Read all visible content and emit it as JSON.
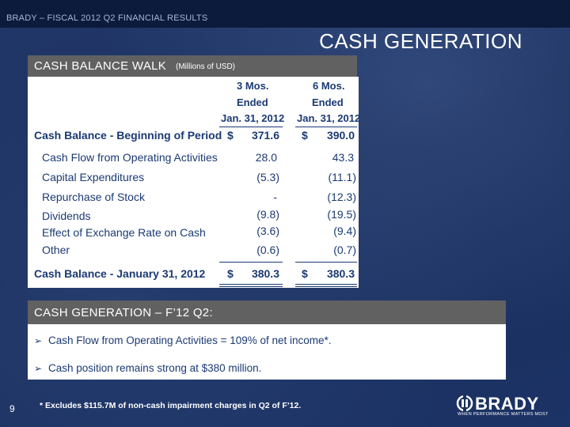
{
  "header": {
    "label": "BRADY – FISCAL 2012 Q2 FINANCIAL RESULTS"
  },
  "title": "CASH GENERATION",
  "cash_walk": {
    "heading": "CASH BALANCE WALK",
    "units": "(Millions of USD)",
    "col1": [
      "3 Mos.",
      "Ended",
      "Jan. 31, 2012"
    ],
    "col2": [
      "6 Mos.",
      "Ended",
      "Jan. 31, 2012"
    ],
    "rows": [
      {
        "label": "Cash Balance - Beginning of Period",
        "c1_sym": "$",
        "c1": "371.6",
        "c2_sym": "$",
        "c2": "390.0"
      },
      {
        "label": "Cash Flow from Operating Activities",
        "c1": "28.0",
        "c2": "43.3"
      },
      {
        "label": "Capital Expenditures",
        "c1": "(5.3)",
        "c2": "(11.1)"
      },
      {
        "label": "Repurchase of Stock",
        "c1": "-",
        "c2": "(12.3)"
      },
      {
        "label": "Dividends",
        "c1": "(9.8)",
        "c2": "(19.5)"
      },
      {
        "label": "Effect of Exchange Rate on Cash",
        "c1": "(3.6)",
        "c2": "(9.4)"
      },
      {
        "label": "Other",
        "c1": "(0.6)",
        "c2": "(0.7)"
      },
      {
        "label": "Cash Balance - January 31, 2012",
        "c1_sym": "$",
        "c1": "380.3",
        "c2_sym": "$",
        "c2": "380.3"
      }
    ]
  },
  "cash_generation": {
    "heading": "CASH GENERATION – F’12 Q2:",
    "bullets": [
      "Cash Flow from Operating Activities = 109% of net income*.",
      "Cash position remains strong at $380 million."
    ]
  },
  "footnote": "* Excludes $115.7M of non-cash impairment charges in Q2 of F’12.",
  "page_number": "9",
  "logo": {
    "name": "BRADY",
    "tagline": "WHEN PERFORMANCE MATTERS MOST",
    "icon": "brady-logo-icon"
  }
}
